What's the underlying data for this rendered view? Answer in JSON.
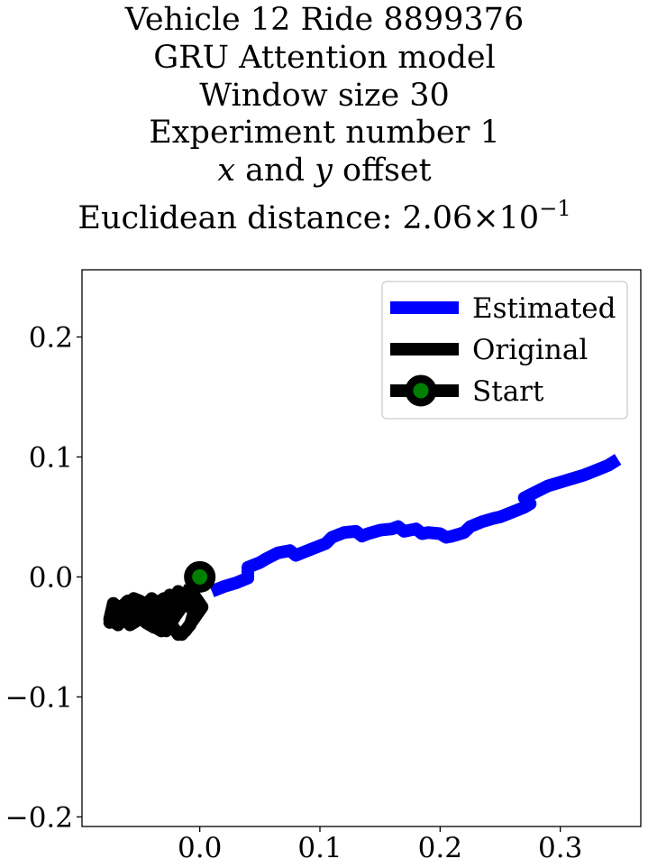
{
  "chart_data": {
    "type": "line",
    "title_lines": [
      "Vehicle 12 Ride 8899376",
      "GRU Attention model",
      "Window size 30",
      "Experiment number 1"
    ],
    "title_offset_line": {
      "x": "x",
      "and": " and ",
      "y": "y",
      "rest": " offset"
    },
    "title_distance": {
      "prefix": "Euclidean distance: 2.06",
      "times": "×10",
      "exponent": "−1"
    },
    "xlim": [
      -0.098,
      0.367
    ],
    "ylim": [
      -0.208,
      0.256
    ],
    "x_ticks": [
      0.0,
      0.1,
      0.2,
      0.3
    ],
    "x_tick_labels": [
      "0.0",
      "0.1",
      "0.2",
      "0.3"
    ],
    "y_ticks": [
      -0.2,
      -0.1,
      0.0,
      0.1,
      0.2
    ],
    "y_tick_labels": [
      "−0.2",
      "−0.1",
      "0.0",
      "0.1",
      "0.2"
    ],
    "grid": false,
    "legend_position": "top-right",
    "series": [
      {
        "name": "Estimated",
        "color": "#0000ff",
        "x": [
          0.01,
          0.02,
          0.03,
          0.04,
          0.04,
          0.05,
          0.055,
          0.065,
          0.075,
          0.08,
          0.085,
          0.095,
          0.105,
          0.11,
          0.115,
          0.12,
          0.13,
          0.135,
          0.14,
          0.15,
          0.16,
          0.165,
          0.17,
          0.18,
          0.185,
          0.19,
          0.2,
          0.205,
          0.21,
          0.22,
          0.225,
          0.235,
          0.245,
          0.25,
          0.26,
          0.27,
          0.275,
          0.27,
          0.28,
          0.29,
          0.3,
          0.31,
          0.32,
          0.33,
          0.34,
          0.348
        ],
        "y": [
          -0.012,
          -0.008,
          -0.005,
          -0.001,
          0.008,
          0.012,
          0.015,
          0.02,
          0.022,
          0.018,
          0.02,
          0.024,
          0.028,
          0.033,
          0.035,
          0.037,
          0.038,
          0.034,
          0.036,
          0.039,
          0.04,
          0.042,
          0.038,
          0.04,
          0.036,
          0.037,
          0.036,
          0.033,
          0.034,
          0.037,
          0.042,
          0.046,
          0.049,
          0.05,
          0.054,
          0.058,
          0.061,
          0.066,
          0.071,
          0.076,
          0.079,
          0.082,
          0.085,
          0.089,
          0.093,
          0.098
        ]
      },
      {
        "name": "Original",
        "color": "#000000",
        "x": [
          0.0,
          -0.01,
          -0.02,
          -0.03,
          -0.04,
          -0.05,
          -0.055,
          -0.065,
          -0.072,
          -0.075,
          -0.068,
          -0.06,
          -0.055,
          -0.05,
          -0.058,
          -0.068,
          -0.075,
          -0.07,
          -0.06,
          -0.05,
          -0.04,
          -0.032,
          -0.025,
          -0.03,
          -0.035,
          -0.028,
          -0.02,
          -0.012,
          -0.005,
          0.002,
          -0.005,
          -0.012,
          -0.018,
          -0.025,
          -0.03,
          -0.035,
          -0.04,
          -0.045,
          -0.04,
          -0.032,
          -0.025,
          -0.02,
          -0.015,
          -0.01,
          -0.005,
          -0.008,
          -0.015,
          -0.02,
          -0.028,
          -0.035,
          -0.042,
          -0.05,
          -0.045,
          -0.038,
          -0.03,
          -0.022,
          -0.018,
          -0.012,
          -0.008
        ],
        "y": [
          0.0,
          -0.012,
          -0.02,
          -0.018,
          -0.025,
          -0.02,
          -0.018,
          -0.028,
          -0.022,
          -0.035,
          -0.04,
          -0.03,
          -0.025,
          -0.035,
          -0.04,
          -0.028,
          -0.038,
          -0.03,
          -0.02,
          -0.025,
          -0.035,
          -0.028,
          -0.015,
          -0.025,
          -0.04,
          -0.045,
          -0.03,
          -0.02,
          -0.015,
          -0.025,
          -0.035,
          -0.045,
          -0.048,
          -0.038,
          -0.03,
          -0.022,
          -0.018,
          -0.03,
          -0.04,
          -0.045,
          -0.04,
          -0.032,
          -0.025,
          -0.02,
          -0.03,
          -0.04,
          -0.048,
          -0.045,
          -0.035,
          -0.025,
          -0.02,
          -0.028,
          -0.038,
          -0.042,
          -0.033,
          -0.02,
          -0.012,
          -0.018,
          -0.008
        ]
      },
      {
        "name": "Start",
        "type": "marker",
        "edge_color": "#000000",
        "face_color": "#008000",
        "x": [
          0.0
        ],
        "y": [
          0.0
        ]
      }
    ]
  }
}
